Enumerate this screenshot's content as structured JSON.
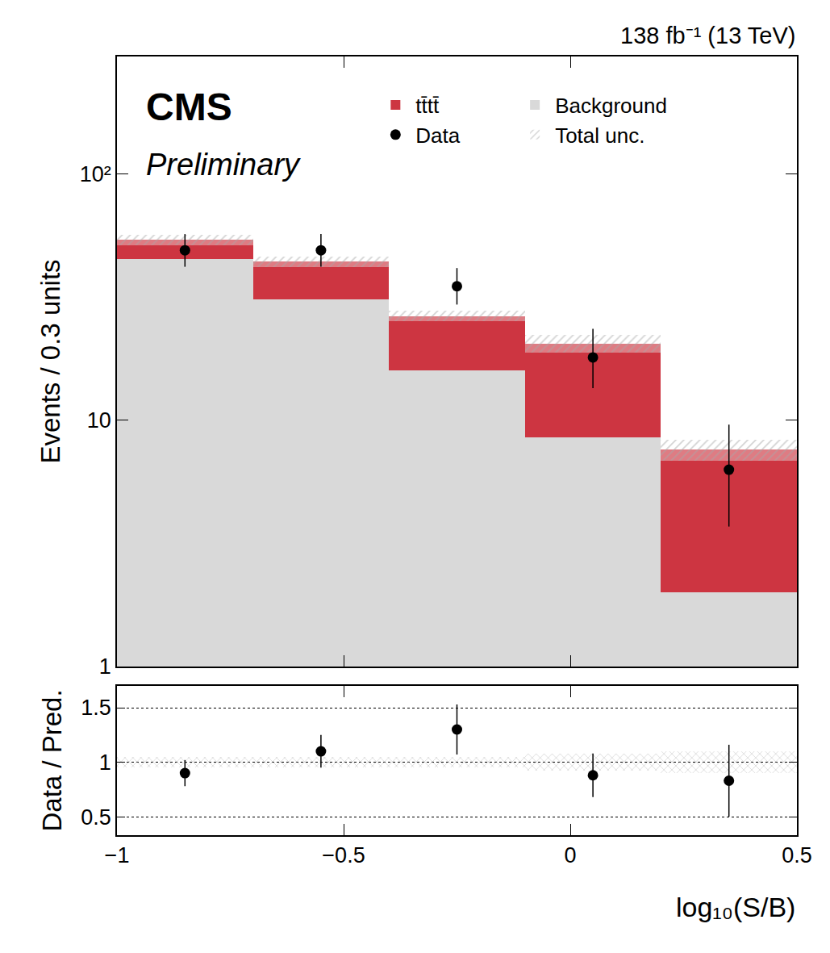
{
  "chart_data": [
    {
      "type": "bar",
      "log": "y",
      "stacked": true,
      "legend": "top",
      "tick_labels": "y",
      "annotations": [
        "CMS",
        "Preliminary",
        "138 fb⁻¹ (13 TeV)"
      ],
      "y_label": "Events / 0.3 units",
      "bins": [
        -1,
        -0.7,
        -0.4,
        -0.1,
        0.2,
        0.5
      ],
      "series": [
        {
          "name": "Background",
          "type": "bar",
          "color": "#d9d9d9",
          "values": [
            45,
            31,
            16,
            8.5,
            2.0
          ]
        },
        {
          "name": "tt̄tt̄",
          "type": "bar",
          "color": "#cd3541",
          "values": [
            9,
            13,
            10.5,
            12,
            5.6
          ]
        },
        {
          "name": "Total unc.",
          "type": "band",
          "color": "#a8a8a8",
          "relative_error": [
            0.05,
            0.05,
            0.05,
            0.08,
            0.1
          ]
        },
        {
          "name": "Data",
          "type": "scatter",
          "color": "#000000",
          "marker": "circle",
          "values": [
            49,
            49,
            35,
            18,
            6.3
          ],
          "error_minus": [
            7,
            7,
            5.5,
            4.5,
            2.6
          ],
          "error_plus": [
            8,
            8,
            6.5,
            5.5,
            3.3
          ]
        }
      ],
      "xlim": [
        -1,
        0.5
      ],
      "xticks": [
        {
          "value": -1,
          "label": "−1"
        },
        {
          "value": -0.5,
          "label": "−0.5"
        },
        0,
        0.5
      ],
      "ylim": [
        1,
        300
      ],
      "yticks": [
        1,
        10,
        {
          "value": 100,
          "label": "10²"
        }
      ]
    },
    {
      "type": "scatter",
      "grid": true,
      "y_label": "Data / Pred.",
      "x_label": "log₁₀(S/B)",
      "bins": [
        -1,
        -0.7,
        -0.4,
        -0.1,
        0.2,
        0.5
      ],
      "series": [
        {
          "type": "band",
          "color": "#a8a8a8",
          "relative_error": [
            0.05,
            0.05,
            0.05,
            0.08,
            0.1
          ]
        },
        {
          "type": "scatter",
          "color": "#000000",
          "marker": "circle",
          "values": [
            0.9,
            1.1,
            1.3,
            0.88,
            0.83
          ],
          "error_minus": [
            0.12,
            0.15,
            0.23,
            0.2,
            0.33
          ],
          "error_plus": [
            0.12,
            0.15,
            0.23,
            0.2,
            0.33
          ]
        }
      ],
      "xlim": [
        -1,
        0.5
      ],
      "xticks": [
        {
          "value": -1,
          "label": "−1"
        },
        {
          "value": -0.5,
          "label": "−0.5"
        },
        0,
        0.5
      ],
      "ylim": [
        0.33,
        1.7
      ],
      "yticks": [
        0.5,
        1,
        1.5
      ]
    }
  ]
}
